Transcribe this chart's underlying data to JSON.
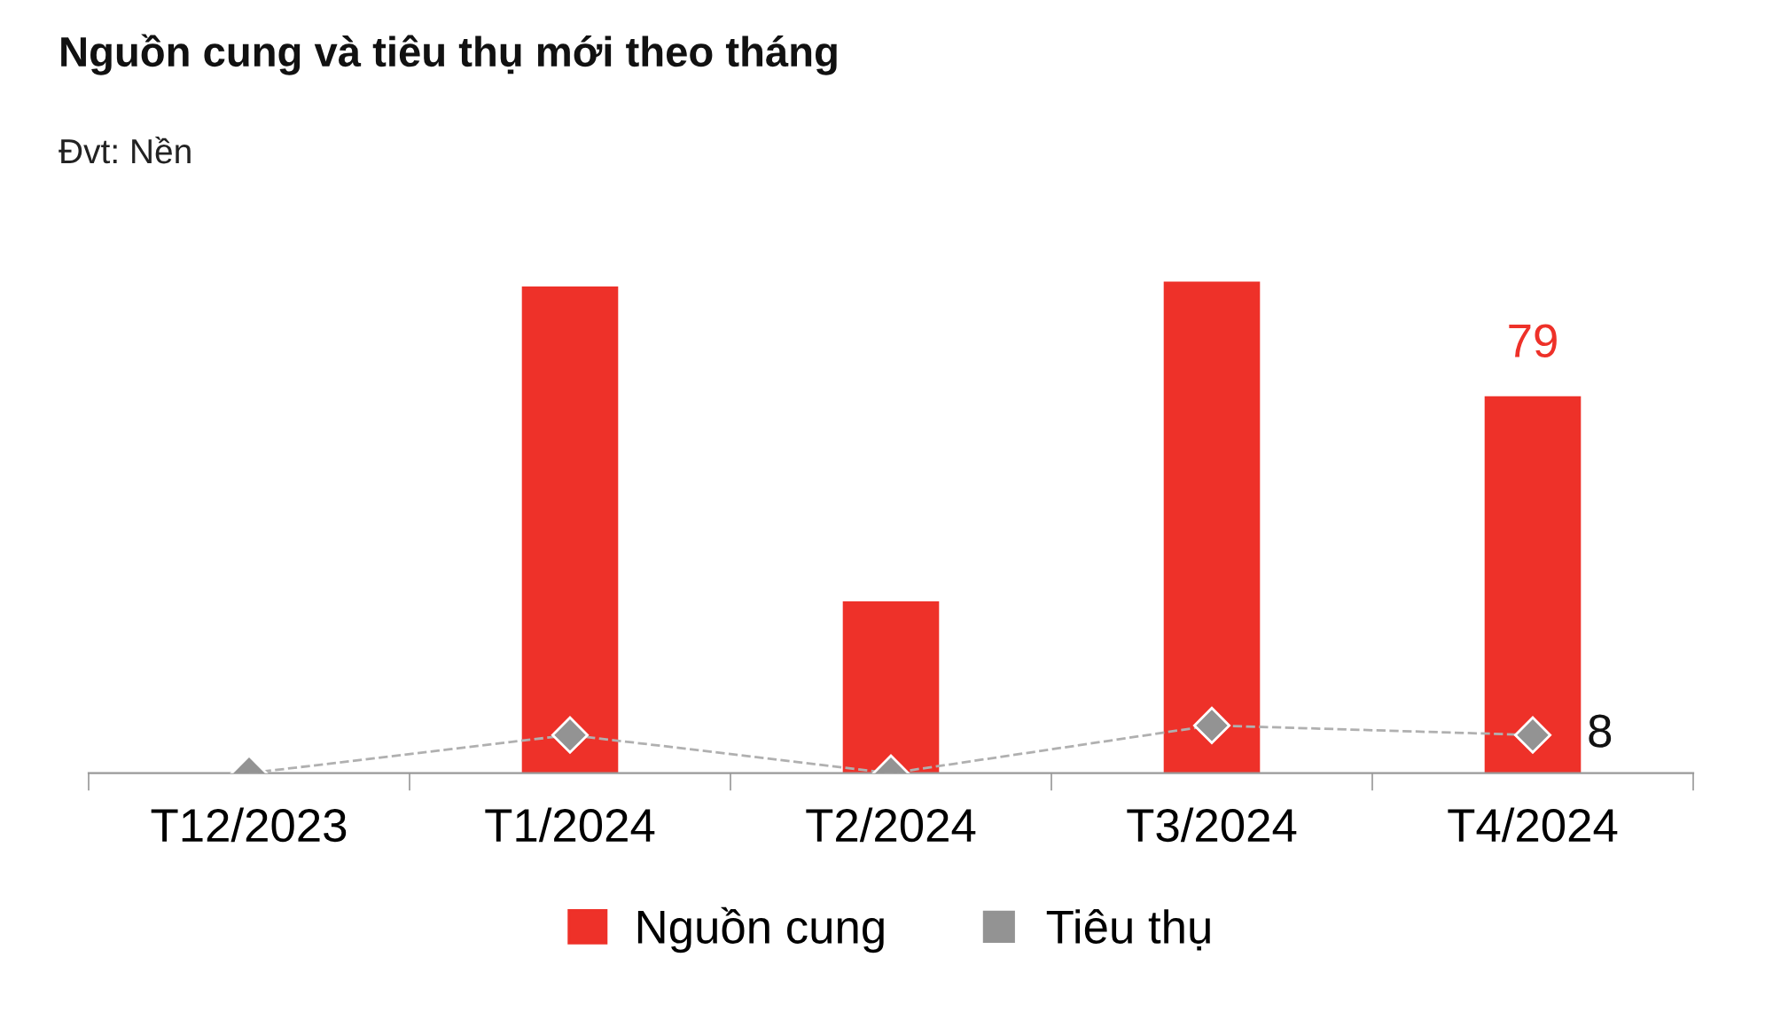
{
  "chart_data": {
    "type": "bar",
    "title": "Nguồn cung và tiêu thụ mới theo tháng",
    "subtitle": "Đvt: Nền",
    "categories": [
      "T12/2023",
      "T1/2024",
      "T2/2024",
      "T3/2024",
      "T4/2024"
    ],
    "series": [
      {
        "name": "Nguồn cung",
        "color": "#ee3129",
        "values": [
          0,
          102,
          36,
          103,
          79
        ],
        "value_labels": [
          null,
          null,
          null,
          null,
          "79"
        ]
      },
      {
        "name": "Tiêu thụ",
        "type": "line",
        "color": "#939393",
        "values": [
          0,
          8,
          0,
          10,
          8
        ],
        "value_labels": [
          null,
          null,
          null,
          null,
          "8"
        ],
        "marker": "diamond",
        "line_style": "dashed"
      }
    ],
    "tick_labels": "x",
    "grid": false,
    "legend": "bottom"
  }
}
